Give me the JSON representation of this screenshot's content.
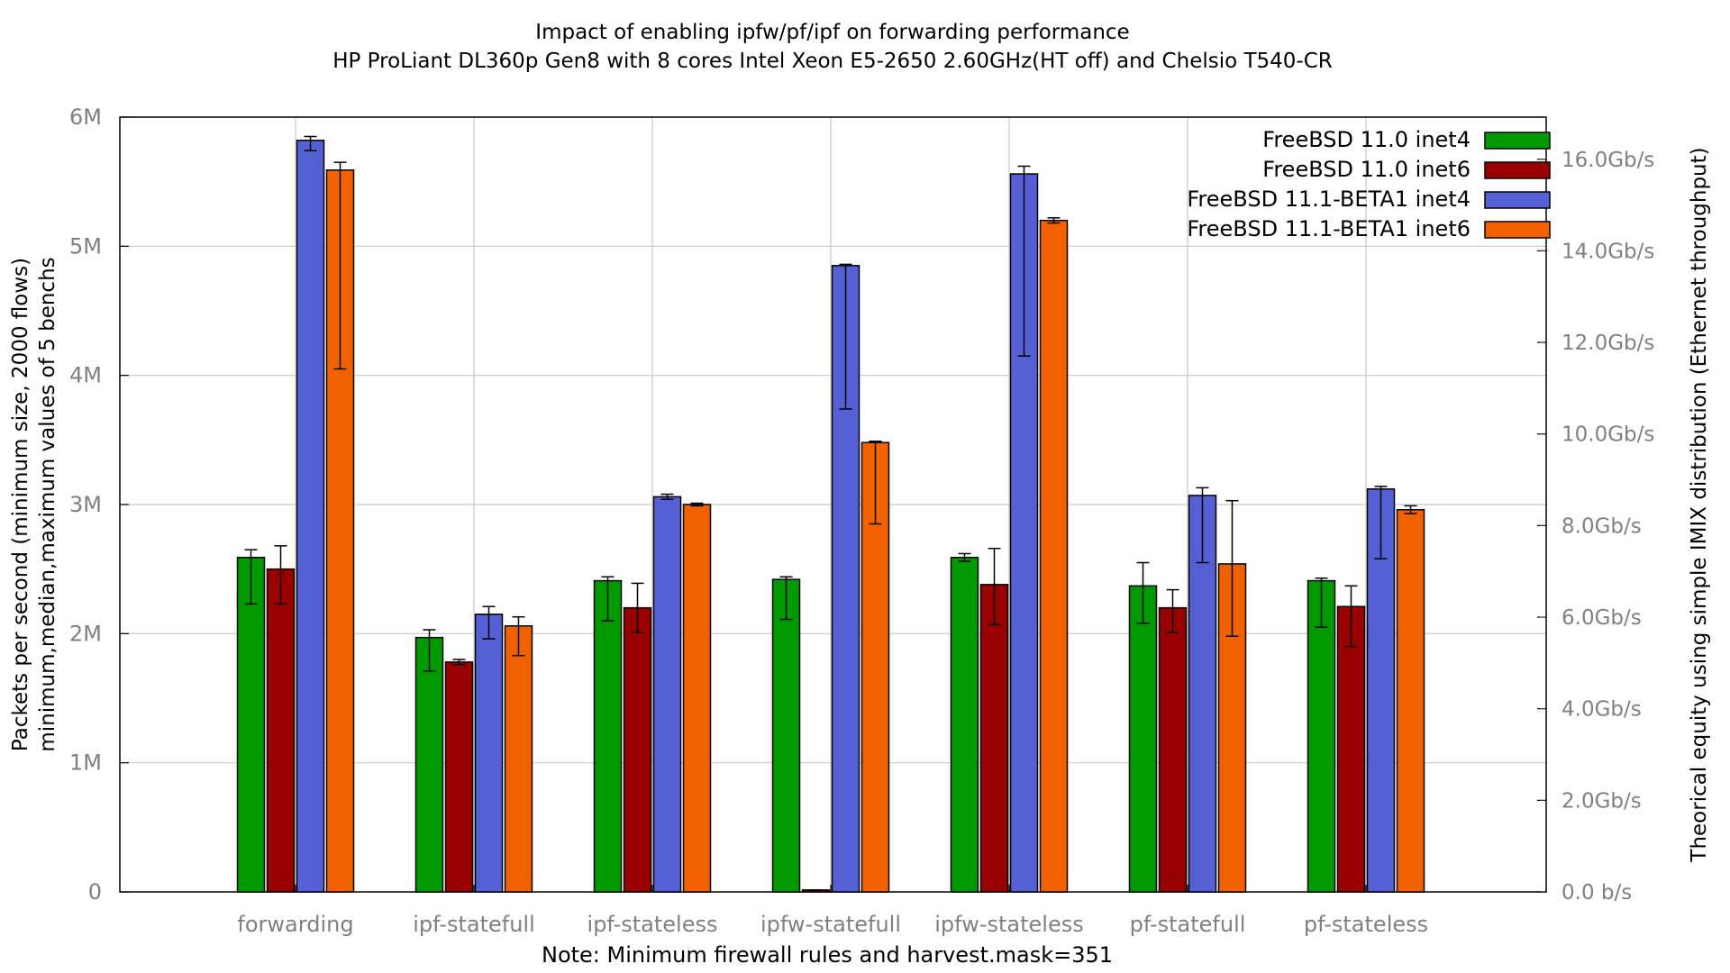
{
  "chart_data": {
    "type": "bar",
    "title": "Impact of enabling ipfw/pf/ipf on forwarding performance",
    "subtitle": "HP ProLiant DL360p Gen8 with 8 cores Intel Xeon E5-2650 2.60GHz(HT off) and Chelsio T540-CR",
    "ylabel": "Packets per second (minimum size, 2000 flows)",
    "ylabel2": "minimum,median,maximum values of 5 benchs",
    "y2label": "Theorical equity using simple IMIX distribution (Ethernet throughput)",
    "xlabel": "Note: Minimum firewall rules and harvest.mask=351",
    "ylim": [
      0,
      6000000
    ],
    "y_ticks": [
      {
        "value": 0,
        "label": "0"
      },
      {
        "value": 1000000,
        "label": "1M"
      },
      {
        "value": 2000000,
        "label": "2M"
      },
      {
        "value": 3000000,
        "label": "3M"
      },
      {
        "value": 4000000,
        "label": "4M"
      },
      {
        "value": 5000000,
        "label": "5M"
      },
      {
        "value": 6000000,
        "label": "6M"
      }
    ],
    "y2_ticks": [
      {
        "value": 0,
        "label": "0.0 b/s"
      },
      {
        "value": 2,
        "label": "2.0Gb/s"
      },
      {
        "value": 4,
        "label": "4.0Gb/s"
      },
      {
        "value": 6,
        "label": "6.0Gb/s"
      },
      {
        "value": 8,
        "label": "8.0Gb/s"
      },
      {
        "value": 10,
        "label": "10.0Gb/s"
      },
      {
        "value": 12,
        "label": "12.0Gb/s"
      },
      {
        "value": 14,
        "label": "14.0Gb/s"
      },
      {
        "value": 16,
        "label": "16.0Gb/s"
      }
    ],
    "y2_gbps_per_mpps": 2.82,
    "categories": [
      "forwarding",
      "ipf-statefull",
      "ipf-stateless",
      "ipfw-statefull",
      "ipfw-stateless",
      "pf-statefull",
      "pf-stateless"
    ],
    "series": [
      {
        "name": "FreeBSD 11.0 inet4",
        "color": "#009900",
        "values": [
          2590000,
          1970000,
          2410000,
          2420000,
          2590000,
          2370000,
          2410000
        ],
        "min": [
          2230000,
          1710000,
          2100000,
          2110000,
          2560000,
          2080000,
          2050000
        ],
        "max": [
          2650000,
          2030000,
          2440000,
          2440000,
          2620000,
          2550000,
          2430000
        ]
      },
      {
        "name": "FreeBSD 11.0 inet6",
        "color": "#990000",
        "values": [
          2500000,
          1780000,
          2200000,
          15000,
          2380000,
          2200000,
          2210000
        ],
        "min": [
          2230000,
          1760000,
          2010000,
          15000,
          2070000,
          2010000,
          1900000
        ],
        "max": [
          2680000,
          1800000,
          2390000,
          15000,
          2660000,
          2340000,
          2370000
        ]
      },
      {
        "name": "FreeBSD 11.1-BETA1 inet4",
        "color": "#5560d5",
        "values": [
          5820000,
          2150000,
          3060000,
          4850000,
          5560000,
          3070000,
          3120000
        ],
        "min": [
          5740000,
          1960000,
          3040000,
          3740000,
          4150000,
          2550000,
          2580000
        ],
        "max": [
          5850000,
          2210000,
          3080000,
          4860000,
          5620000,
          3130000,
          3140000
        ]
      },
      {
        "name": "FreeBSD 11.1-BETA1 inet6",
        "color": "#f26100",
        "values": [
          5590000,
          2060000,
          3000000,
          3480000,
          5200000,
          2540000,
          2960000
        ],
        "min": [
          4050000,
          1830000,
          2990000,
          2850000,
          5180000,
          1980000,
          2930000
        ],
        "max": [
          5650000,
          2130000,
          3010000,
          3490000,
          5220000,
          3030000,
          2990000
        ]
      }
    ],
    "legend_position": "top-right",
    "grid": true
  }
}
